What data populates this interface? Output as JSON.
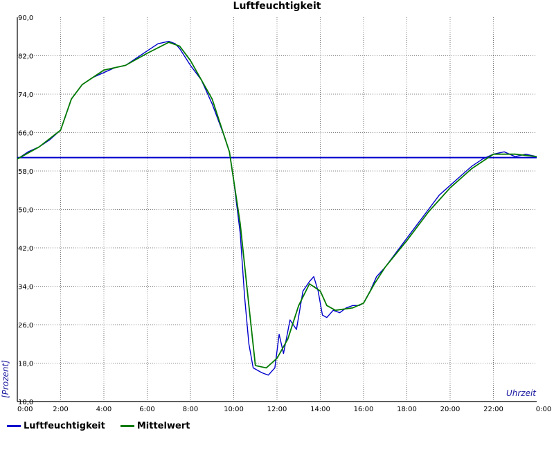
{
  "chart_data": {
    "type": "line",
    "title": "Luftfeuchtigkeit",
    "xlabel": "Uhrzeit",
    "ylabel": "[Prozent]",
    "xlim": [
      0,
      24
    ],
    "ylim": [
      10,
      90
    ],
    "x_ticks": [
      "0:00",
      "2:00",
      "4:00",
      "6:00",
      "8:00",
      "10:00",
      "12:00",
      "14:00",
      "16:00",
      "18:00",
      "20:00",
      "22:00",
      "0:00"
    ],
    "y_ticks": [
      "10,0",
      "18,0",
      "26,0",
      "34,0",
      "42,0",
      "50,0",
      "58,0",
      "66,0",
      "74,0",
      "82,0",
      "90,0"
    ],
    "grid": true,
    "legend_position": "bottom-left",
    "reference_line": {
      "y": 60.8,
      "color": "#0000cc"
    },
    "series": [
      {
        "name": "Luftfeuchtigkeit",
        "color": "#0000cc",
        "x": [
          0,
          0.5,
          1,
          1.5,
          2,
          2.5,
          3,
          3.5,
          4,
          4.5,
          5,
          5.5,
          6,
          6.5,
          7,
          7.3,
          7.5,
          8,
          8.5,
          9,
          9.5,
          9.8,
          10,
          10.3,
          10.5,
          10.7,
          10.9,
          11.1,
          11.3,
          11.6,
          11.9,
          12.1,
          12.3,
          12.6,
          12.9,
          13.2,
          13.5,
          13.7,
          13.9,
          14.1,
          14.3,
          14.6,
          14.9,
          15.2,
          15.5,
          15.8,
          16,
          16.3,
          16.6,
          17,
          17.5,
          18,
          18.5,
          19,
          19.5,
          20,
          20.5,
          21,
          21.5,
          22,
          22.5,
          23,
          23.5,
          24
        ],
        "y": [
          60.5,
          62,
          63,
          64.5,
          66.5,
          73,
          76,
          77.5,
          78.5,
          79.5,
          80,
          81.5,
          83,
          84.5,
          85,
          84.5,
          83.5,
          80,
          77,
          72,
          66,
          62,
          56,
          45,
          32,
          22,
          17,
          16.5,
          16,
          15.5,
          17,
          24,
          20,
          27,
          25,
          33,
          35,
          36,
          33,
          28,
          27.5,
          29,
          28.5,
          29.5,
          30,
          30,
          30.5,
          33,
          36,
          38,
          41,
          44,
          47,
          50,
          53,
          55,
          57,
          59,
          60.5,
          61.5,
          62,
          61,
          61.5,
          61
        ]
      },
      {
        "name": "Mittelwert",
        "color": "#007a00",
        "x": [
          0,
          1,
          2,
          2.5,
          3,
          4,
          5,
          6,
          7,
          7.5,
          8,
          9,
          9.8,
          10.3,
          10.7,
          11,
          11.5,
          12,
          12.5,
          13,
          13.5,
          14,
          14.3,
          14.7,
          15.5,
          16,
          16.5,
          17,
          18,
          19,
          20,
          21,
          22,
          23,
          24
        ],
        "y": [
          60.5,
          63,
          66.5,
          73,
          76,
          79,
          80,
          82.5,
          84.8,
          84,
          81,
          73,
          62,
          47,
          30,
          17.5,
          17,
          19,
          23,
          30,
          34.5,
          33,
          30,
          29,
          29.5,
          30.5,
          34.5,
          38,
          43.5,
          49.5,
          54.5,
          58.5,
          61.5,
          61.5,
          61
        ]
      }
    ]
  }
}
